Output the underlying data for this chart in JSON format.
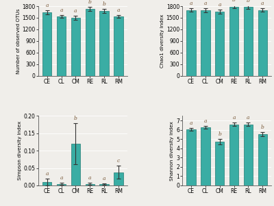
{
  "categories": [
    "CE",
    "CL",
    "CM",
    "RE",
    "RL",
    "RM"
  ],
  "bar_color": "#3aada4",
  "edge_color": "#1f7a72",
  "bg_color": "#f0eeea",
  "otus_values": [
    1640,
    1535,
    1500,
    1730,
    1680,
    1535
  ],
  "otus_errors": [
    55,
    40,
    50,
    45,
    55,
    38
  ],
  "otus_labels": [
    "a",
    "a",
    "a",
    "b",
    "b",
    "a"
  ],
  "otus_ylabel": "Number of observed OTUs",
  "otus_ylim": [
    0,
    1800
  ],
  "otus_yticks": [
    0,
    300,
    600,
    900,
    1200,
    1500,
    1800
  ],
  "chao1_values": [
    1700,
    1695,
    1660,
    1790,
    1775,
    1700
  ],
  "chao1_errors": [
    48,
    50,
    52,
    42,
    48,
    44
  ],
  "chao1_labels": [
    "a",
    "a",
    "a",
    "b",
    "b",
    "a"
  ],
  "chao1_ylabel": "Chao1 diversity index",
  "chao1_ylim": [
    0,
    1800
  ],
  "chao1_yticks": [
    0,
    300,
    600,
    900,
    1200,
    1500,
    1800
  ],
  "simpson_values": [
    0.01,
    0.004,
    0.12,
    0.004,
    0.003,
    0.038
  ],
  "simpson_errors": [
    0.01,
    0.003,
    0.06,
    0.003,
    0.002,
    0.018
  ],
  "simpson_labels": [
    "a",
    "a",
    "b",
    "a",
    "a",
    "c"
  ],
  "simpson_ylabel": "Simpson diversity index",
  "simpson_ylim": [
    0,
    0.2
  ],
  "simpson_yticks": [
    0.0,
    0.05,
    0.1,
    0.15,
    0.2
  ],
  "shannon_values": [
    6.05,
    6.3,
    4.7,
    6.6,
    6.6,
    5.5
  ],
  "shannon_errors": [
    0.15,
    0.15,
    0.3,
    0.18,
    0.18,
    0.22
  ],
  "shannon_labels": [
    "a",
    "a",
    "b",
    "a",
    "a",
    "b"
  ],
  "shannon_ylabel": "Shannon diversity index",
  "shannon_ylim": [
    0,
    7.5
  ],
  "shannon_yticks": [
    0,
    1,
    2,
    3,
    4,
    5,
    6,
    7
  ]
}
